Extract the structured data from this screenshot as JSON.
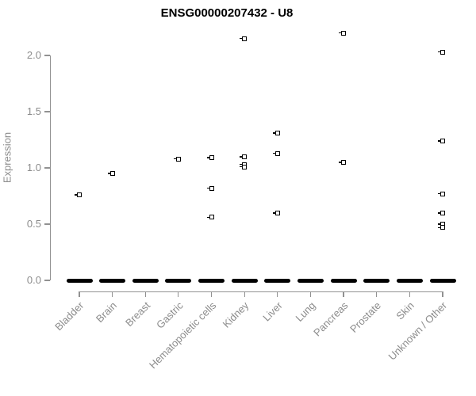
{
  "chart_data": {
    "type": "scatter",
    "title": "ENSG00000207432 - U8",
    "ylabel": "Expression",
    "xlabel": "",
    "categories": [
      "Bladder",
      "Brain",
      "Breast",
      "Gastric",
      "Hematopoietic cells",
      "Kidney",
      "Liver",
      "Lung",
      "Pancreas",
      "Prostate",
      "Skin",
      "Unknown / Other"
    ],
    "ytick_labels": [
      "0.0",
      "0.5",
      "1.0",
      "1.5",
      "2.0"
    ],
    "ytick_values": [
      0,
      0.5,
      1.0,
      1.5,
      2.0
    ],
    "ylim": [
      0,
      2.25
    ],
    "grid": false,
    "legend": false,
    "marker_style": "open-square",
    "colors": {
      "marker": "#000000",
      "axis": "#919191",
      "labels": "#8c8c8c",
      "title": "#000000"
    },
    "points": [
      {
        "category": "Bladder",
        "value": 0.76
      },
      {
        "category": "Brain",
        "value": 0.95
      },
      {
        "category": "Gastric",
        "value": 1.08
      },
      {
        "category": "Hematopoietic cells",
        "value": 1.09
      },
      {
        "category": "Hematopoietic cells",
        "value": 0.82
      },
      {
        "category": "Hematopoietic cells",
        "value": 0.56
      },
      {
        "category": "Kidney",
        "value": 2.15
      },
      {
        "category": "Kidney",
        "value": 1.1
      },
      {
        "category": "Kidney",
        "value": 1.03
      },
      {
        "category": "Kidney",
        "value": 1.01
      },
      {
        "category": "Liver",
        "value": 1.31
      },
      {
        "category": "Liver",
        "value": 1.13
      },
      {
        "category": "Liver",
        "value": 0.6
      },
      {
        "category": "Pancreas",
        "value": 2.2
      },
      {
        "category": "Pancreas",
        "value": 1.05
      },
      {
        "category": "Unknown / Other",
        "value": 2.03
      },
      {
        "category": "Unknown / Other",
        "value": 1.24
      },
      {
        "category": "Unknown / Other",
        "value": 0.77
      },
      {
        "category": "Unknown / Other",
        "value": 0.6
      },
      {
        "category": "Unknown / Other",
        "value": 0.5
      },
      {
        "category": "Unknown / Other",
        "value": 0.47
      }
    ],
    "zero_cluster_categories": [
      "Bladder",
      "Brain",
      "Breast",
      "Gastric",
      "Hematopoietic cells",
      "Kidney",
      "Liver",
      "Lung",
      "Pancreas",
      "Prostate",
      "Skin",
      "Unknown / Other"
    ],
    "zero_cluster_value": 0.0
  }
}
